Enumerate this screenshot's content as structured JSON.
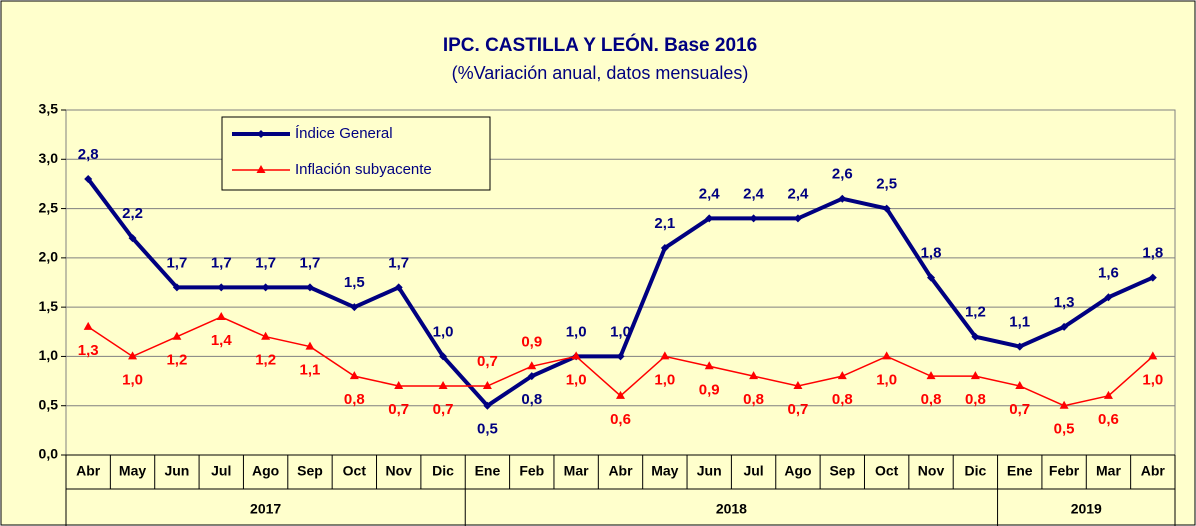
{
  "chart_data": {
    "type": "line",
    "title": "IPC. CASTILLA Y LEÓN. Base 2016",
    "subtitle": "(%Variación anual, datos mensuales)",
    "categories": [
      "Abr",
      "May",
      "Jun",
      "Jul",
      "Ago",
      "Sep",
      "Oct",
      "Nov",
      "Dic",
      "Ene",
      "Feb",
      "Mar",
      "Abr",
      "May",
      "Jun",
      "Jul",
      "Ago",
      "Sep",
      "Oct",
      "Nov",
      "Dic",
      "Ene",
      "Febr",
      "Mar",
      "Abr"
    ],
    "x_groups": [
      {
        "label": "2017",
        "span": 9
      },
      {
        "label": "2018",
        "span": 12
      },
      {
        "label": "2019",
        "span": 4
      }
    ],
    "series": [
      {
        "name": "Índice General",
        "color": "#000080",
        "values": [
          2.8,
          2.2,
          1.7,
          1.7,
          1.7,
          1.7,
          1.5,
          1.7,
          1.0,
          0.5,
          0.8,
          1.0,
          1.0,
          2.1,
          2.4,
          2.4,
          2.4,
          2.6,
          2.5,
          1.8,
          1.2,
          1.1,
          1.3,
          1.6,
          1.8
        ],
        "value_labels": [
          "2,8",
          "2,2",
          "1,7",
          "1,7",
          "1,7",
          "1,7",
          "1,5",
          "1,7",
          "1,0",
          "0,5",
          "0,8",
          "1,0",
          "1,0",
          "2,1",
          "2,4",
          "2,4",
          "2,4",
          "2,6",
          "2,5",
          "1,8",
          "1,2",
          "1,1",
          "1,3",
          "1,6",
          "1,8"
        ]
      },
      {
        "name": "Inflación subyacente",
        "color": "#ff0000",
        "values": [
          1.3,
          1.0,
          1.2,
          1.4,
          1.2,
          1.1,
          0.8,
          0.7,
          0.7,
          0.7,
          0.9,
          1.0,
          0.6,
          1.0,
          0.9,
          0.8,
          0.7,
          0.8,
          1.0,
          0.8,
          0.8,
          0.7,
          0.5,
          0.6,
          1.0
        ],
        "value_labels": [
          "1,3",
          "1,0",
          "1,2",
          "1,4",
          "1,2",
          "1,1",
          "0,8",
          "0,7",
          "0,7",
          "0,7",
          "0,9",
          "1,0",
          "0,6",
          "1,0",
          "0,9",
          "0,8",
          "0,7",
          "0,8",
          "1,0",
          "0,8",
          "0,8",
          "0,7",
          "0,5",
          "0,6",
          "1,0"
        ]
      }
    ],
    "ylim": [
      0,
      3.5
    ],
    "yticks": [
      {
        "value": 0,
        "label": "0,0"
      },
      {
        "value": 0.5,
        "label": "0,5"
      },
      {
        "value": 1,
        "label": "1,0"
      },
      {
        "value": 1.5,
        "label": "1,5"
      },
      {
        "value": 2,
        "label": "2,0"
      },
      {
        "value": 2.5,
        "label": "2,5"
      },
      {
        "value": 3,
        "label": "3,0"
      },
      {
        "value": 3.5,
        "label": "3,5"
      }
    ],
    "grid": true
  }
}
